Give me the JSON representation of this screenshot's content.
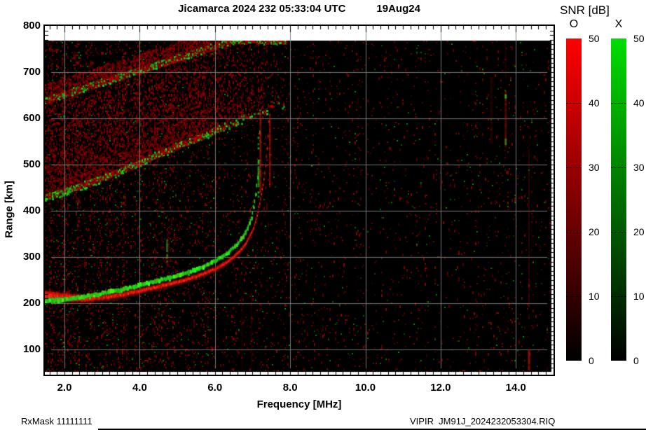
{
  "header": {
    "title": "Jicamarca 2024 232 05:33:04 UTC",
    "date": "19Aug24"
  },
  "footer": {
    "left": "RxMask 11111111",
    "right": "VIPIR  JM91J_2024232053304.RIQ"
  },
  "chart_data": {
    "type": "heatmap",
    "description": "VIPIR ionogram: echo SNR vs frequency and virtual range, O and X polarizations",
    "xlabel": "Frequency [MHz]",
    "ylabel": "Range [km]",
    "x_range_mhz": [
      1.45,
      15.0
    ],
    "y_range_km": [
      46,
      800
    ],
    "grid": true,
    "background": "#000000",
    "x_ticks": [
      {
        "v": 2,
        "label": "2.0"
      },
      {
        "v": 4,
        "label": "4.0"
      },
      {
        "v": 6,
        "label": "6.0"
      },
      {
        "v": 8,
        "label": "8.0"
      },
      {
        "v": 10,
        "label": "10.0"
      },
      {
        "v": 12,
        "label": "12.0"
      },
      {
        "v": 14,
        "label": "14.0"
      }
    ],
    "y_ticks": [
      {
        "v": 100,
        "label": "100"
      },
      {
        "v": 200,
        "label": "200"
      },
      {
        "v": 300,
        "label": "300"
      },
      {
        "v": 400,
        "label": "400"
      },
      {
        "v": 500,
        "label": "500"
      },
      {
        "v": 600,
        "label": "600"
      },
      {
        "v": 700,
        "label": "700"
      },
      {
        "v": 800,
        "label": "800"
      }
    ],
    "colorbar": {
      "title": "SNR [dB]",
      "range": [
        0,
        50
      ],
      "tick_labels": [
        "0",
        "10",
        "20",
        "30",
        "40",
        "50"
      ],
      "bars": [
        {
          "label": "O",
          "top_color": "#ff0000",
          "bottom_color": "#000000"
        },
        {
          "label": "X",
          "top_color": "#00dd00",
          "bottom_color": "#000000"
        }
      ]
    },
    "series": [
      {
        "name": "F-trace O-mode",
        "mode": "O",
        "color": "#e01408",
        "critical_freq_mhz": 7.45,
        "points_f_km": [
          [
            1.45,
            216
          ],
          [
            2.0,
            213
          ],
          [
            2.5,
            210
          ],
          [
            3.0,
            212
          ],
          [
            3.5,
            218
          ],
          [
            4.0,
            227
          ],
          [
            4.5,
            236
          ],
          [
            5.0,
            246
          ],
          [
            5.5,
            258
          ],
          [
            6.0,
            274
          ],
          [
            6.3,
            288
          ],
          [
            6.6,
            308
          ],
          [
            6.8,
            327
          ],
          [
            7.0,
            358
          ],
          [
            7.1,
            385
          ],
          [
            7.2,
            425
          ],
          [
            7.3,
            472
          ],
          [
            7.38,
            535
          ],
          [
            7.43,
            600
          ],
          [
            7.45,
            615
          ]
        ]
      },
      {
        "name": "F-trace X-mode",
        "mode": "X",
        "color": "#22d722",
        "critical_freq_mhz": 7.19,
        "points_f_km": [
          [
            1.45,
            204
          ],
          [
            2.0,
            208
          ],
          [
            2.5,
            214
          ],
          [
            3.0,
            221
          ],
          [
            3.5,
            229
          ],
          [
            4.0,
            239
          ],
          [
            4.5,
            249
          ],
          [
            5.0,
            260
          ],
          [
            5.5,
            273
          ],
          [
            6.0,
            292
          ],
          [
            6.3,
            308
          ],
          [
            6.6,
            329
          ],
          [
            6.8,
            352
          ],
          [
            6.95,
            382
          ],
          [
            7.05,
            425
          ],
          [
            7.12,
            470
          ],
          [
            7.16,
            520
          ],
          [
            7.18,
            575
          ],
          [
            7.19,
            612
          ]
        ]
      },
      {
        "name": "spread-F lower edge",
        "mode": "mixed",
        "color": "#c01008",
        "points_f_km": [
          [
            1.45,
            428
          ],
          [
            2.0,
            442
          ],
          [
            3.0,
            470
          ],
          [
            4.0,
            503
          ],
          [
            5.0,
            540
          ],
          [
            6.0,
            572
          ],
          [
            7.0,
            607
          ],
          [
            7.9,
            632
          ]
        ]
      },
      {
        "name": "spread-F upper band edge",
        "mode": "mixed",
        "color": "#c01008",
        "points_f_km": [
          [
            1.45,
            638
          ],
          [
            6.45,
            768
          ]
        ]
      }
    ],
    "streaks": [
      {
        "f": 7.16,
        "km0": 430,
        "km1": 560,
        "w": 3,
        "alpha": 0.8,
        "color": "green",
        "dotted": true
      },
      {
        "f": 7.21,
        "km0": 440,
        "km1": 612,
        "w": 2.5,
        "alpha": 0.8,
        "color": "red"
      },
      {
        "f": 7.46,
        "km0": 455,
        "km1": 610,
        "w": 2.5,
        "alpha": 0.85,
        "color": "red"
      },
      {
        "f": 4.75,
        "km0": 282,
        "km1": 346,
        "w": 4,
        "alpha": 0.22,
        "color": "red"
      },
      {
        "f": 4.73,
        "km0": 288,
        "km1": 338,
        "w": 3,
        "alpha": 0.55,
        "color": "green",
        "dotted": true
      },
      {
        "f": 6.72,
        "km0": 60,
        "km1": 215,
        "w": 2,
        "alpha": 0.16,
        "color": "red"
      },
      {
        "f": 6.97,
        "km0": 60,
        "km1": 230,
        "w": 2,
        "alpha": 0.18,
        "color": "red"
      },
      {
        "f": 13.35,
        "km0": 545,
        "km1": 690,
        "w": 4,
        "alpha": 0.18,
        "color": "red"
      },
      {
        "f": 13.73,
        "km0": 540,
        "km1": 660,
        "w": 3,
        "alpha": 0.55,
        "color": "red"
      },
      {
        "f": 13.73,
        "km0": 690,
        "km1": 755,
        "w": 2,
        "alpha": 0.2,
        "color": "red"
      },
      {
        "f": 13.73,
        "km0": 640,
        "km1": 652,
        "w": 3,
        "alpha": 0.85,
        "color": "green",
        "dotted": true
      },
      {
        "f": 13.73,
        "km0": 545,
        "km1": 556,
        "w": 3,
        "alpha": 0.6,
        "color": "green",
        "dotted": true
      },
      {
        "f": 14.35,
        "km0": 194,
        "km1": 533,
        "w": 2,
        "alpha": 0.3,
        "color": "red"
      },
      {
        "f": 14.35,
        "km0": 56,
        "km1": 100,
        "w": 3,
        "alpha": 0.75,
        "color": "red"
      }
    ],
    "noise": {
      "red_density_left": 0.12,
      "red_density_mid": 0.06,
      "red_density_right": 0.032,
      "green_density": 0.012,
      "column_structure": true
    }
  }
}
